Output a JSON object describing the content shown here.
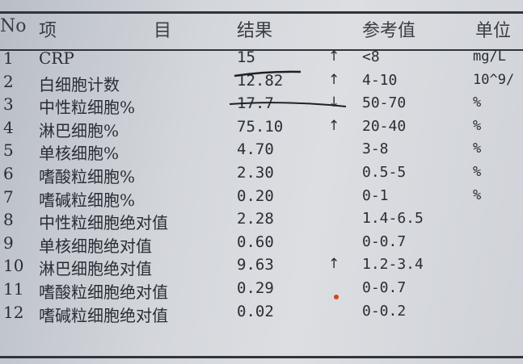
{
  "header": {
    "no": "No",
    "item_left": "项",
    "item_right": "目",
    "result": "结果",
    "reference": "参考值",
    "unit": "单位"
  },
  "rows": [
    {
      "no": "1",
      "name": "CRP",
      "result": "15",
      "flag": "↑",
      "reference": "<8",
      "unit": "mg/L"
    },
    {
      "no": "2",
      "name": "白细胞计数",
      "result": "12.82",
      "flag": "↑",
      "reference": "4-10",
      "unit": "10^9/"
    },
    {
      "no": "3",
      "name": "中性粒细胞%",
      "result": "17.7",
      "flag": "↓",
      "reference": "50-70",
      "unit": "%"
    },
    {
      "no": "4",
      "name": "淋巴细胞%",
      "result": "75.10",
      "flag": "↑",
      "reference": "20-40",
      "unit": "%"
    },
    {
      "no": "5",
      "name": "单核细胞%",
      "result": "4.70",
      "flag": "",
      "reference": "3-8",
      "unit": "%"
    },
    {
      "no": "6",
      "name": "嗜酸粒细胞%",
      "result": "2.30",
      "flag": "",
      "reference": "0.5-5",
      "unit": "%"
    },
    {
      "no": "7",
      "name": "嗜碱粒细胞%",
      "result": "0.20",
      "flag": "",
      "reference": "0-1",
      "unit": "%"
    },
    {
      "no": "8",
      "name": "中性粒细胞绝对值",
      "result": "2.28",
      "flag": "",
      "reference": "1.4-6.5",
      "unit": ""
    },
    {
      "no": "9",
      "name": "单核细胞绝对值",
      "result": "0.60",
      "flag": "",
      "reference": "0-0.7",
      "unit": ""
    },
    {
      "no": "10",
      "name": "淋巴细胞绝对值",
      "result": "9.63",
      "flag": "↑",
      "reference": "1.2-3.4",
      "unit": ""
    },
    {
      "no": "11",
      "name": "嗜酸粒细胞绝对值",
      "result": "0.29",
      "flag": "",
      "reference": "0-0.7",
      "unit": ""
    },
    {
      "no": "12",
      "name": "嗜碱粒细胞绝对值",
      "result": "0.02",
      "flag": "",
      "reference": "0-0.2",
      "unit": ""
    }
  ],
  "colors": {
    "ink": "#2a2d33",
    "pen_mark": "#1e2026",
    "red_mark": "#d2451e"
  }
}
